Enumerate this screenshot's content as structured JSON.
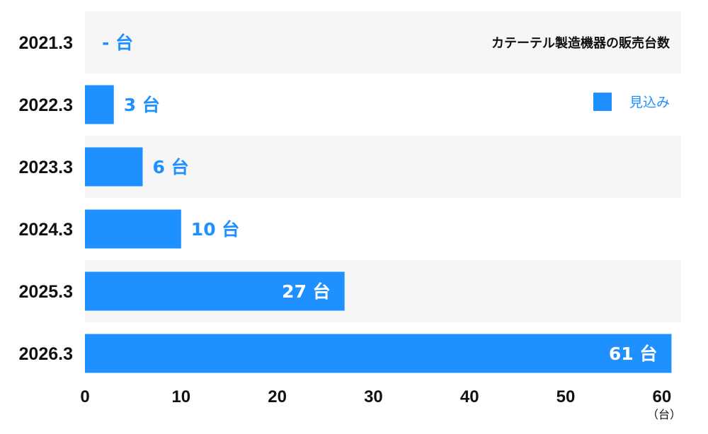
{
  "chart_data": {
    "type": "bar",
    "orientation": "horizontal",
    "title": "カテーテル製造機器の販売台数",
    "categories": [
      "2021.3",
      "2022.3",
      "2023.3",
      "2024.3",
      "2025.3",
      "2026.3"
    ],
    "series": [
      {
        "name": "見込み",
        "values": [
          null,
          3,
          6,
          10,
          27,
          61
        ],
        "labels": [
          "- 台",
          "3 台",
          "6 台",
          "10 台",
          "27 台",
          "61 台"
        ]
      }
    ],
    "xlim": [
      0,
      62
    ],
    "xticks": [
      "0",
      "10",
      "20",
      "30",
      "40",
      "50",
      "60"
    ],
    "xunit": "（台）",
    "colors": {
      "bar": "#1e90ff",
      "label": "#1e90ff",
      "band": "#f6f6f6",
      "inside_label": "#ffffff"
    },
    "legend_position": "top-right",
    "grid": false
  }
}
